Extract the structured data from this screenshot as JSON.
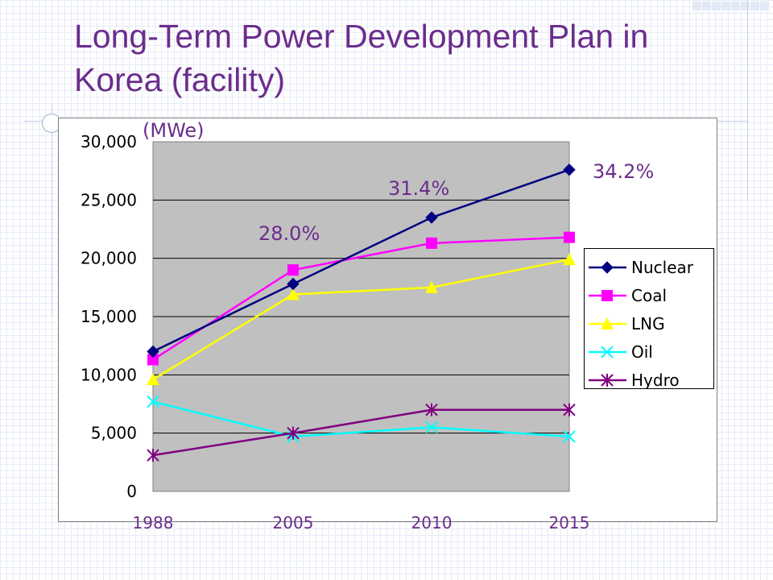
{
  "slide": {
    "title": "Long-Term Power Development Plan in Korea (facility)"
  },
  "annotations": {
    "unit": "(MWe)",
    "share_2005": "28.0%",
    "share_2010": "31.4%",
    "share_2015": "34.2%"
  },
  "chart_data": {
    "type": "line",
    "title": "Long-Term Power Development Plan in Korea (facility)",
    "ylabel": "(MWe)",
    "xlabel": "",
    "categories": [
      "1988",
      "2005",
      "2010",
      "2015"
    ],
    "ylim": [
      0,
      30000
    ],
    "yticks": [
      0,
      5000,
      10000,
      15000,
      20000,
      25000,
      30000
    ],
    "ytick_labels": [
      "0",
      "5,000",
      "10,000",
      "15,000",
      "20,000",
      "25,000",
      "30,000"
    ],
    "grid": true,
    "legend_position": "right",
    "series": [
      {
        "name": "Nuclear",
        "values": [
          12000,
          17800,
          23500,
          27600
        ],
        "color": "#000080",
        "marker": "diamond"
      },
      {
        "name": "Coal",
        "values": [
          11300,
          19000,
          21300,
          21800
        ],
        "color": "#ff00ff",
        "marker": "square"
      },
      {
        "name": "LNG",
        "values": [
          9600,
          16900,
          17500,
          19900
        ],
        "color": "#ffff00",
        "marker": "triangle"
      },
      {
        "name": "Oil",
        "values": [
          7700,
          4700,
          5500,
          4700
        ],
        "color": "#00ffff",
        "marker": "x"
      },
      {
        "name": "Hydro",
        "values": [
          3100,
          5000,
          7000,
          7000
        ],
        "color": "#800080",
        "marker": "star"
      }
    ]
  }
}
